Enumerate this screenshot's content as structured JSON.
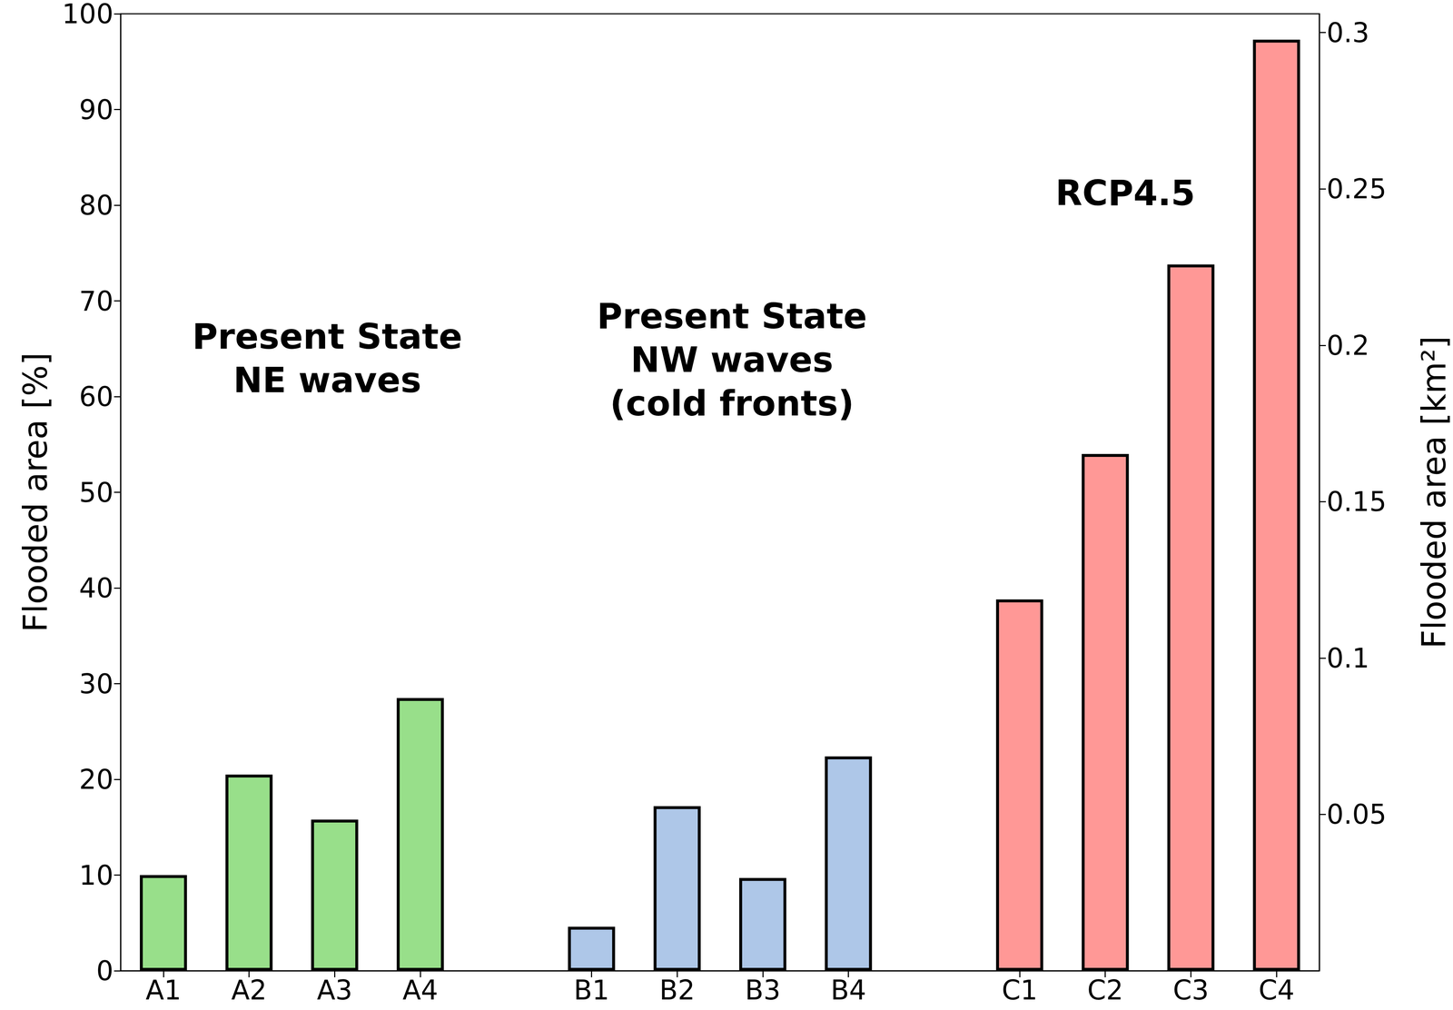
{
  "chart_data": {
    "type": "bar",
    "categories": [
      "A1",
      "A2",
      "A3",
      "A4",
      null,
      "B1",
      "B2",
      "B3",
      "B4",
      null,
      "C1",
      "C2",
      "C3",
      "C4"
    ],
    "values": [
      10,
      20.5,
      15.8,
      28.5,
      null,
      4.6,
      17.2,
      9.7,
      22.4,
      null,
      38.8,
      54,
      73.8,
      97.3
    ],
    "colors": [
      "#98df8a",
      "#98df8a",
      "#98df8a",
      "#98df8a",
      null,
      "#aec7e8",
      "#aec7e8",
      "#aec7e8",
      "#aec7e8",
      null,
      "#ff9896",
      "#ff9896",
      "#ff9896",
      "#ff9896"
    ],
    "y_label": "Flooded area [%]",
    "ylim": [
      0,
      100
    ],
    "yticks": [
      0,
      10,
      20,
      30,
      40,
      50,
      60,
      70,
      80,
      90,
      100
    ],
    "y2_label": "Flooded area [km²]",
    "y2lim": [
      0,
      0.306
    ],
    "y2ticks": [
      0.05,
      0.1,
      0.15,
      0.2,
      0.25,
      0.3
    ],
    "annotations": [
      "Present State\nNE waves",
      "Present State\nNW waves\n(cold fronts)",
      "RCP4.5"
    ],
    "grid": false
  }
}
